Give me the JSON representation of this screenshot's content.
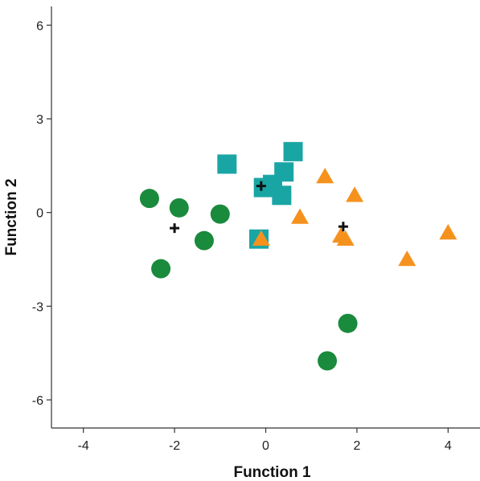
{
  "chart_data": {
    "type": "scatter",
    "title": "",
    "xlabel": "Function 1",
    "ylabel": "Function 2",
    "xlim": [
      -4.7,
      4.7
    ],
    "ylim": [
      -6.9,
      6.6
    ],
    "xticks": [
      -4,
      -2,
      0,
      2,
      4
    ],
    "yticks": [
      6,
      3,
      0,
      -3,
      -6
    ],
    "grid": false,
    "legend": "none",
    "series": [
      {
        "marker": "circle",
        "color": "#1a8a3c",
        "points": [
          {
            "x": -2.55,
            "y": 0.45
          },
          {
            "x": -1.9,
            "y": 0.15
          },
          {
            "x": -1.0,
            "y": -0.05
          },
          {
            "x": -1.35,
            "y": -0.9
          },
          {
            "x": -2.3,
            "y": -1.8
          },
          {
            "x": 1.8,
            "y": -3.55
          },
          {
            "x": 1.35,
            "y": -4.75
          }
        ]
      },
      {
        "marker": "square",
        "color": "#1aa5a5",
        "points": [
          {
            "x": 0.6,
            "y": 1.95
          },
          {
            "x": -0.85,
            "y": 1.55
          },
          {
            "x": 0.4,
            "y": 1.3
          },
          {
            "x": 0.15,
            "y": 0.9
          },
          {
            "x": -0.05,
            "y": 0.8
          },
          {
            "x": 0.35,
            "y": 0.55
          },
          {
            "x": -0.15,
            "y": -0.85
          }
        ]
      },
      {
        "marker": "triangle",
        "color": "#f5921e",
        "points": [
          {
            "x": 1.3,
            "y": 1.15
          },
          {
            "x": 1.95,
            "y": 0.55
          },
          {
            "x": 0.75,
            "y": -0.15
          },
          {
            "x": -0.1,
            "y": -0.85
          },
          {
            "x": 1.65,
            "y": -0.75
          },
          {
            "x": 1.75,
            "y": -0.85
          },
          {
            "x": 4.0,
            "y": -0.65
          },
          {
            "x": 3.1,
            "y": -1.5
          }
        ]
      }
    ],
    "centroids": {
      "marker": "plus",
      "color": "#111111",
      "points": [
        {
          "x": -2.0,
          "y": -0.5
        },
        {
          "x": -0.1,
          "y": 0.85
        },
        {
          "x": 1.7,
          "y": -0.45
        }
      ]
    }
  }
}
